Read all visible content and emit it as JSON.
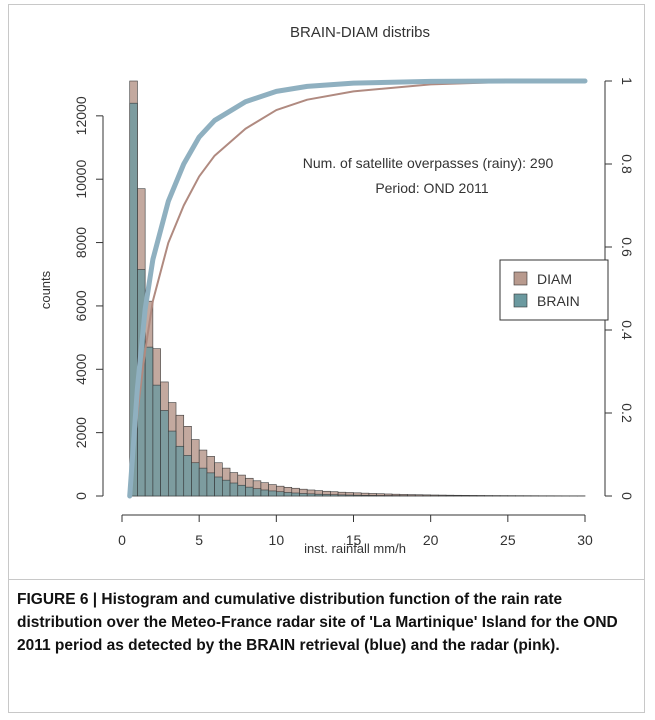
{
  "chart_data": {
    "type": "bar",
    "title": "BRAIN-DIAM distribs",
    "xlabel": "inst. rainfall mm/h",
    "ylabel": "counts",
    "xlim": [
      0,
      30
    ],
    "ylim": [
      0,
      13000
    ],
    "y2lim": [
      0,
      1
    ],
    "xticks": [
      "0",
      "5",
      "10",
      "15",
      "20",
      "25",
      "30"
    ],
    "yticks": [
      "0",
      "2000",
      "4000",
      "6000",
      "8000",
      "10000",
      "12000"
    ],
    "y2ticks": [
      "0",
      "0.2",
      "0.4",
      "0.6",
      "0.8",
      "1"
    ],
    "bin_width": 0.5,
    "bin_start": 0,
    "legend_position": "right",
    "annotation_lines": [
      "Num. of satellite overpasses (rainy):  290",
      "Period: OND 2011"
    ],
    "series": [
      {
        "name": "DIAM",
        "color": "#b89a8e",
        "values": [
          0,
          13100,
          9700,
          6150,
          4650,
          3600,
          2950,
          2550,
          2200,
          1780,
          1450,
          1250,
          1050,
          880,
          740,
          660,
          560,
          480,
          420,
          360,
          310,
          275,
          245,
          215,
          190,
          170,
          150,
          135,
          120,
          110,
          100,
          90,
          80,
          72,
          64,
          57,
          50,
          45,
          40,
          36,
          32,
          29,
          26,
          23,
          21,
          19,
          17,
          15,
          14,
          13,
          12,
          11,
          10,
          9,
          8,
          8,
          7,
          6,
          6,
          5
        ]
      },
      {
        "name": "BRAIN",
        "color": "#6b999f",
        "values": [
          0,
          12400,
          7150,
          4700,
          3500,
          2700,
          2050,
          1570,
          1280,
          1050,
          880,
          730,
          600,
          500,
          410,
          340,
          280,
          230,
          190,
          160,
          135,
          112,
          95,
          80,
          68,
          57,
          48,
          41,
          35,
          30,
          26,
          22,
          19,
          16,
          14,
          12,
          10,
          9,
          8,
          7,
          6,
          5,
          4,
          4,
          3,
          3,
          3,
          2,
          2,
          2,
          2,
          1,
          1,
          1,
          1,
          1,
          1,
          1,
          1,
          1
        ]
      }
    ],
    "cdf": [
      {
        "name": "DIAM",
        "color": "#b08a80",
        "x": [
          0.5,
          1,
          1.5,
          2,
          3,
          4,
          5,
          6,
          8,
          10,
          12,
          15,
          20,
          25,
          30
        ],
        "y": [
          0,
          0.2,
          0.35,
          0.47,
          0.61,
          0.7,
          0.77,
          0.82,
          0.885,
          0.93,
          0.955,
          0.975,
          0.992,
          0.998,
          1.0
        ]
      },
      {
        "name": "BRAIN",
        "color": "#8fb0c0",
        "x": [
          0.5,
          1,
          1.5,
          2,
          3,
          4,
          5,
          6,
          8,
          10,
          12,
          15,
          20,
          25,
          30
        ],
        "y": [
          0,
          0.26,
          0.45,
          0.57,
          0.71,
          0.8,
          0.865,
          0.905,
          0.95,
          0.975,
          0.987,
          0.995,
          0.999,
          1.0,
          1.0
        ]
      }
    ]
  },
  "caption": "FIGURE 6 | Histogram and cumulative distribution function of the rain rate distribution over the Meteo-France radar site of 'La Martinique' Island for the OND 2011 period as detected by the BRAIN retrieval (blue) and the radar (pink)."
}
